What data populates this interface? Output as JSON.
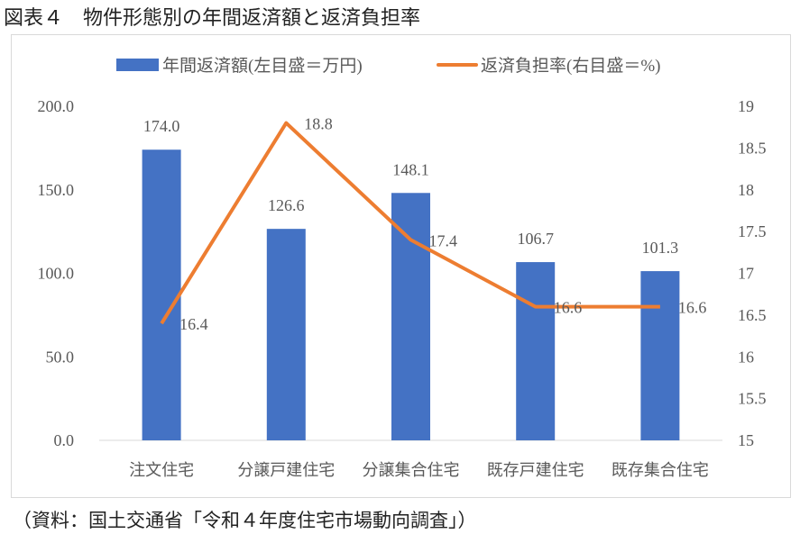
{
  "title": "図表４　物件形態別の年間返済額と返済負担率",
  "source": "（資料：国土交通省「令和４年度住宅市場動向調査」）",
  "chart_data": {
    "type": "bar+line",
    "categories": [
      "注文住宅",
      "分譲戸建住宅",
      "分譲集合住宅",
      "既存戸建住宅",
      "既存集合住宅"
    ],
    "series": [
      {
        "name": "年間返済額(左目盛＝万円)",
        "type": "bar",
        "axis": "left",
        "color": "#4472C4",
        "values": [
          174.0,
          126.6,
          148.1,
          106.7,
          101.3
        ],
        "labels": [
          "174.0",
          "126.6",
          "148.1",
          "106.7",
          "101.3"
        ]
      },
      {
        "name": "返済負担率(右目盛＝%)",
        "type": "line",
        "axis": "right",
        "color": "#ED7D31",
        "values": [
          16.4,
          18.8,
          17.4,
          16.6,
          16.6
        ],
        "labels": [
          "16.4",
          "18.8",
          "17.4",
          "16.6",
          "16.6"
        ]
      }
    ],
    "y_left": {
      "range": [
        0,
        200
      ],
      "ticks": [
        "0.0",
        "50.0",
        "100.0",
        "150.0",
        "200.0"
      ]
    },
    "y_right": {
      "range": [
        15,
        19
      ],
      "ticks": [
        "15",
        "15.5",
        "16",
        "16.5",
        "17",
        "17.5",
        "18",
        "18.5",
        "19"
      ]
    },
    "grid": false,
    "legend": "top"
  }
}
